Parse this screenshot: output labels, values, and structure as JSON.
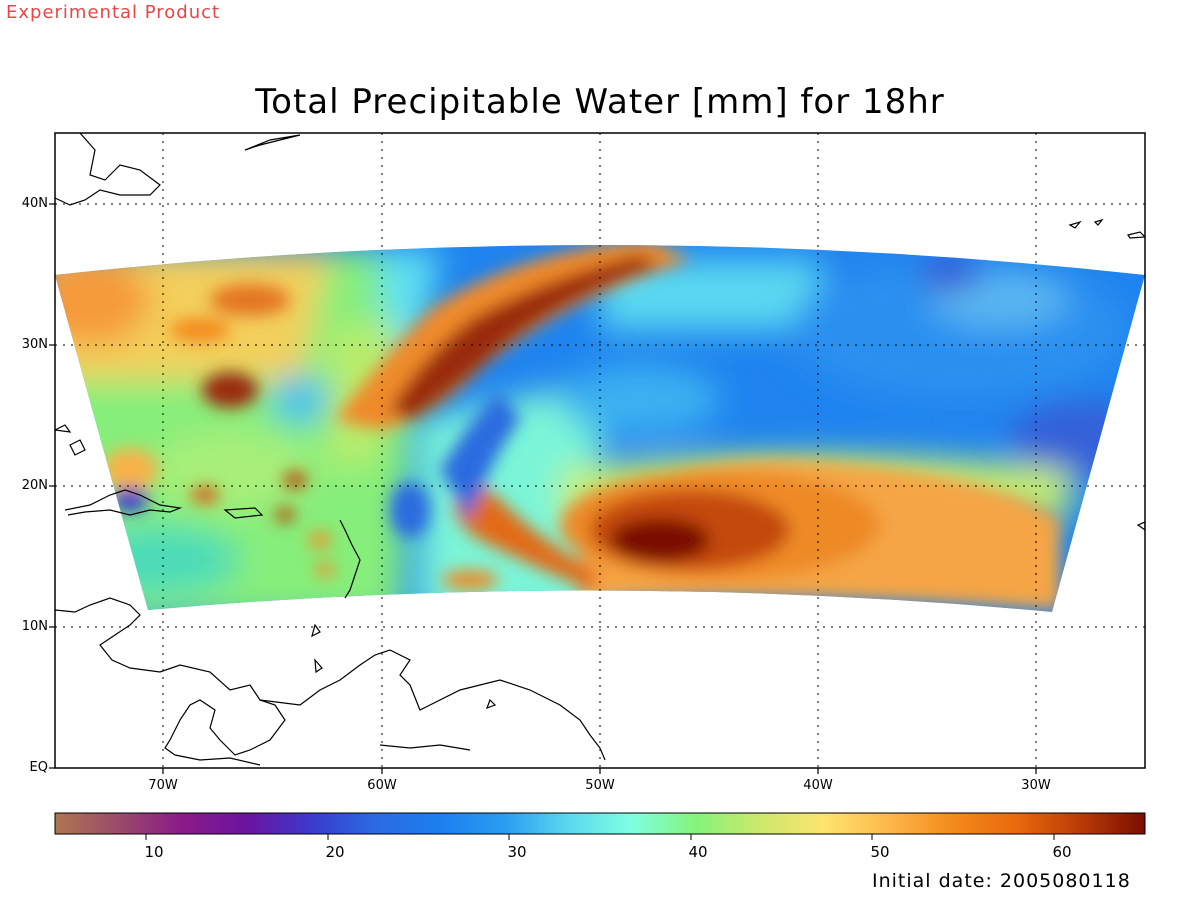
{
  "header": {
    "experimental_label": "Experimental Product",
    "title": "Total Precipitable Water [mm] for 18hr"
  },
  "footer": {
    "initial_date": "Initial date: 2005080118"
  },
  "map": {
    "lon_range": [
      -75,
      -25
    ],
    "lat_range": [
      0,
      45
    ],
    "gridlines": "dotted",
    "lat_ticks": [
      {
        "value": 40,
        "label": "40N"
      },
      {
        "value": 30,
        "label": "30N"
      },
      {
        "value": 20,
        "label": "20N"
      },
      {
        "value": 10,
        "label": "10N"
      },
      {
        "value": 0,
        "label": "EQ"
      }
    ],
    "lon_ticks": [
      {
        "value": -70,
        "label": "70W"
      },
      {
        "value": -60,
        "label": "60W"
      },
      {
        "value": -50,
        "label": "50W"
      },
      {
        "value": -40,
        "label": "40W"
      },
      {
        "value": -30,
        "label": "30W"
      }
    ]
  },
  "colorbar": {
    "range": [
      5,
      65
    ],
    "ticks": [
      {
        "value": 10,
        "label": "10"
      },
      {
        "value": 20,
        "label": "20"
      },
      {
        "value": 30,
        "label": "30"
      },
      {
        "value": 40,
        "label": "40"
      },
      {
        "value": 50,
        "label": "50"
      },
      {
        "value": 60,
        "label": "60"
      }
    ],
    "colors": [
      "#b07550",
      "#9a4a6a",
      "#8a1a88",
      "#6a14a0",
      "#3a3acc",
      "#2b6be0",
      "#1b7fef",
      "#2a9cf2",
      "#5ad8f0",
      "#7fffe0",
      "#85f37a",
      "#cde86c",
      "#fde46e",
      "#fdb84a",
      "#f38a1c",
      "#e86a0c",
      "#b93a06",
      "#7a0e00"
    ]
  },
  "annotations": {
    "storm_center": {
      "lon": -46.5,
      "lat": 15.5,
      "value_mm": 65
    }
  }
}
